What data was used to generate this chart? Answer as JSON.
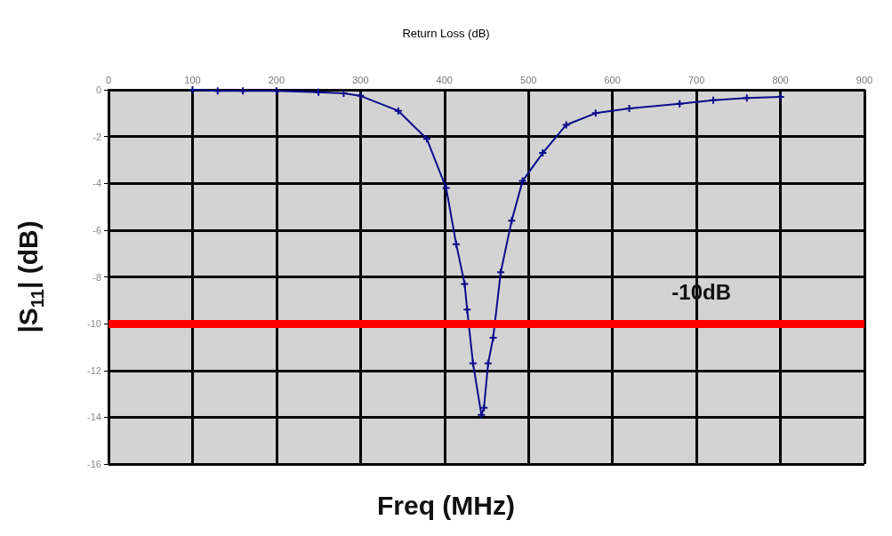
{
  "chart_data": {
    "type": "line",
    "title": "Return Loss (dB)",
    "xlabel": "Freq (MHz)",
    "ylabel": "|S$_{11}$| (dB)",
    "series": [
      {
        "color": "#0a0a8c",
        "x": [
          100,
          130,
          160,
          200,
          250,
          280,
          300,
          345,
          379,
          402,
          414,
          424,
          427,
          434,
          444,
          447,
          452,
          458,
          467,
          480,
          493,
          517,
          545,
          580,
          620,
          680,
          720,
          760,
          800
        ],
        "values": [
          0,
          -0.05,
          -0.05,
          -0.05,
          -0.1,
          -0.15,
          -0.26,
          -0.9,
          -2.1,
          -4.2,
          -6.6,
          -8.3,
          -9.4,
          -11.7,
          -13.9,
          -13.6,
          -11.7,
          -10.6,
          -7.8,
          -5.6,
          -3.9,
          -2.7,
          -1.5,
          -1.0,
          -0.8,
          -0.6,
          -0.45,
          -0.35,
          -0.3
        ]
      }
    ],
    "xlim": [
      0,
      900
    ],
    "xticks": [
      0,
      100,
      200,
      300,
      400,
      500,
      600,
      700,
      800,
      900
    ],
    "ylim": [
      -16,
      0
    ],
    "yticks": [
      0,
      -2,
      -4,
      -6,
      -8,
      -10,
      -12,
      -14,
      -16
    ],
    "ref_lines": [
      {
        "axis": "y",
        "value": -10,
        "label": "-10dB",
        "color": "#ff0000"
      }
    ],
    "grid": true,
    "marker": "cross"
  }
}
